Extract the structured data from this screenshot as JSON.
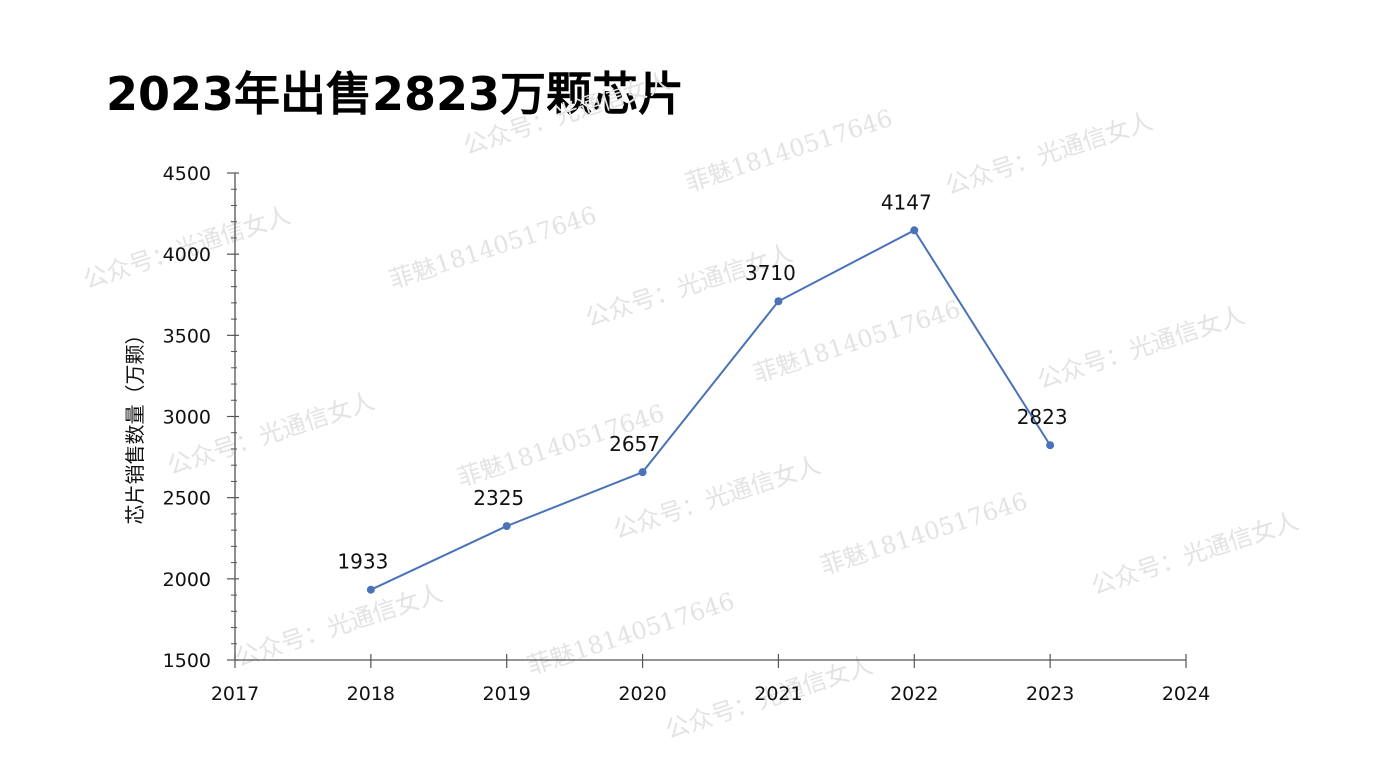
{
  "chart_data": {
    "type": "line",
    "title": "2023年出售2823万颗芯片",
    "xlabel": "",
    "ylabel": "芯片销售数量（万颗）",
    "x_ticks": [
      "2017",
      "2018",
      "2019",
      "2020",
      "2021",
      "2022",
      "2023",
      "2024"
    ],
    "xlim": [
      2017,
      2024
    ],
    "ylim": [
      1500,
      4500
    ],
    "y_ticks": [
      1500,
      2000,
      2500,
      3000,
      3500,
      4000,
      4500
    ],
    "grid": false,
    "series": [
      {
        "x": [
          2018,
          2019,
          2020,
          2021,
          2022,
          2023
        ],
        "values": [
          1933,
          2325,
          2657,
          3710,
          4147,
          2823
        ],
        "data_labels": [
          "1933",
          "2325",
          "2657",
          "3710",
          "4147",
          "2823"
        ],
        "color": "#4a72b8"
      }
    ]
  },
  "watermarks": [
    "公众号：光通信女人",
    "菲魅18140517646"
  ]
}
